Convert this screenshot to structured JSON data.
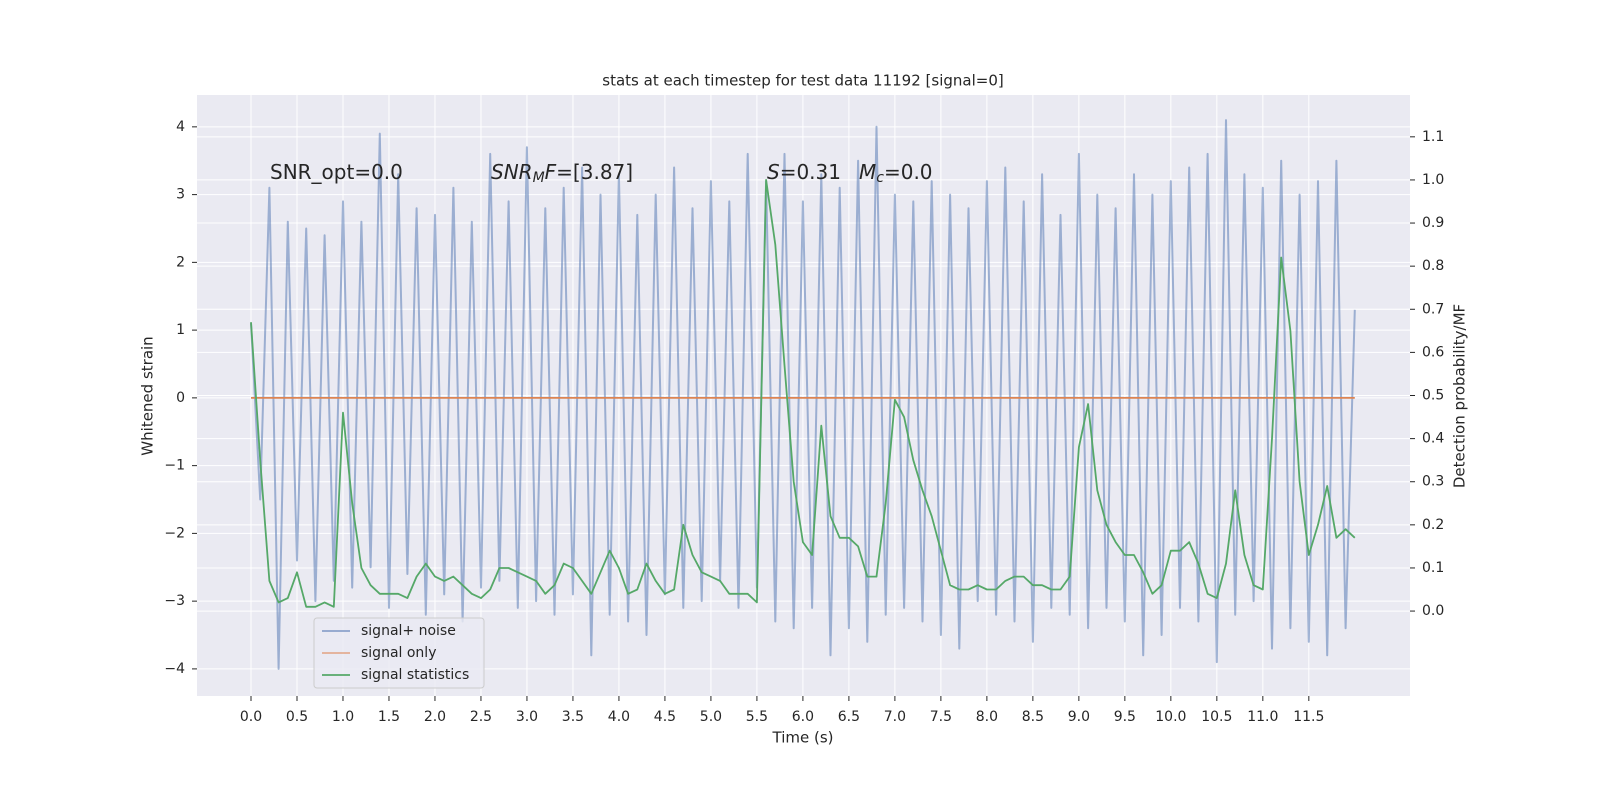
{
  "chart_data": {
    "type": "line",
    "title": "stats at each timestep for test data 11192 [signal=0]",
    "xlabel": "Time (s)",
    "ylabel": "Whitened strain",
    "y2label": "Detection probability/MF",
    "xlim": [
      -0.587,
      12.6
    ],
    "ylim": [
      -4.4,
      4.47
    ],
    "y2lim": [
      -0.197,
      1.197
    ],
    "xticks": [
      {
        "value": 0,
        "label": "0.0"
      },
      0.5,
      {
        "value": 1,
        "label": "1.0"
      },
      1.5,
      {
        "value": 2,
        "label": "2.0"
      },
      2.5,
      {
        "value": 3,
        "label": "3.0"
      },
      3.5,
      {
        "value": 4,
        "label": "4.0"
      },
      4.5,
      {
        "value": 5,
        "label": "5.0"
      },
      5.5,
      {
        "value": 6,
        "label": "6.0"
      },
      6.5,
      {
        "value": 7,
        "label": "7.0"
      },
      7.5,
      {
        "value": 8,
        "label": "8.0"
      },
      8.5,
      {
        "value": 9,
        "label": "9.0"
      },
      9.5,
      {
        "value": 10,
        "label": "10.0"
      },
      10.5,
      {
        "value": 11,
        "label": "11.0"
      },
      11.5
    ],
    "yticks": [
      {
        "value": -4,
        "label": "−4"
      },
      {
        "value": -3,
        "label": "−3"
      },
      {
        "value": -2,
        "label": "−2"
      },
      {
        "value": -1,
        "label": "−1"
      },
      0,
      1,
      2,
      3,
      4
    ],
    "y2ticks": [
      {
        "value": 0,
        "label": "0.0"
      },
      0.1,
      0.2,
      0.3,
      0.4,
      0.5,
      0.6,
      0.7,
      0.8,
      0.9,
      {
        "value": 1,
        "label": "1.0"
      },
      1.1
    ],
    "grid": true,
    "legend_loc": "lower left",
    "annotations": [
      [
        {
          "text": "SNR_opt=0.0",
          "italic": false,
          "sub": false
        }
      ],
      [
        {
          "text": "SNR",
          "italic": true,
          "sub": false
        },
        {
          "text": "M",
          "italic": true,
          "sub": true
        },
        {
          "text": "F",
          "italic": true,
          "sub": false
        },
        {
          "text": "=[3.87]",
          "italic": false,
          "sub": false
        }
      ],
      [
        {
          "text": "S",
          "italic": true,
          "sub": false
        },
        {
          "text": "=0.31",
          "italic": false,
          "sub": false
        }
      ],
      [
        {
          "text": "M",
          "italic": true,
          "sub": false
        },
        {
          "text": "c",
          "italic": true,
          "sub": true
        },
        {
          "text": "=0.0",
          "italic": false,
          "sub": false
        }
      ]
    ],
    "x": [
      0,
      0.1,
      0.2,
      0.3,
      0.4,
      0.5,
      0.6,
      0.7,
      0.8,
      0.9,
      1,
      1.1,
      1.2,
      1.3,
      1.4,
      1.5,
      1.6,
      1.7,
      1.8,
      1.9,
      2,
      2.1,
      2.2,
      2.3,
      2.4,
      2.5,
      2.6,
      2.7,
      2.8,
      2.9,
      3,
      3.1,
      3.2,
      3.3,
      3.4,
      3.5,
      3.6,
      3.7,
      3.8,
      3.9,
      4,
      4.1,
      4.2,
      4.3,
      4.4,
      4.5,
      4.6,
      4.7,
      4.8,
      4.9,
      5,
      5.1,
      5.2,
      5.3,
      5.4,
      5.5,
      5.6,
      5.7,
      5.8,
      5.9,
      6,
      6.1,
      6.2,
      6.3,
      6.4,
      6.5,
      6.6,
      6.7,
      6.8,
      6.9,
      7,
      7.1,
      7.2,
      7.3,
      7.4,
      7.5,
      7.6,
      7.7,
      7.8,
      7.9,
      8,
      8.1,
      8.2,
      8.3,
      8.4,
      8.5,
      8.6,
      8.7,
      8.8,
      8.9,
      9,
      9.1,
      9.2,
      9.3,
      9.4,
      9.5,
      9.6,
      9.7,
      9.8,
      9.9,
      10,
      10.1,
      10.2,
      10.3,
      10.4,
      10.5,
      10.6,
      10.7,
      10.8,
      10.9,
      11,
      11.1,
      11.2,
      11.3,
      11.4,
      11.5,
      11.6,
      11.7,
      11.8,
      11.9,
      12
    ],
    "series": [
      {
        "name": "signal+ noise",
        "color": "#4c72b0",
        "axis": "y",
        "values": [
          1.1,
          -1.5,
          3.1,
          -4.0,
          2.6,
          -2.4,
          2.5,
          -3.0,
          2.4,
          -2.7,
          2.9,
          -2.8,
          2.6,
          -2.5,
          3.9,
          -3.1,
          3.3,
          -2.6,
          2.8,
          -3.2,
          2.7,
          -2.9,
          3.1,
          -3.3,
          2.6,
          -2.8,
          3.6,
          -2.7,
          2.9,
          -3.1,
          3.7,
          -3.0,
          2.8,
          -3.2,
          3.1,
          -2.9,
          3.4,
          -3.8,
          3.0,
          -3.2,
          3.3,
          -3.3,
          2.7,
          -3.5,
          3.0,
          -2.9,
          3.4,
          -3.1,
          2.8,
          -3.0,
          3.2,
          -2.7,
          2.9,
          -3.1,
          3.6,
          -2.8,
          3.2,
          -3.3,
          3.6,
          -3.4,
          2.9,
          -3.1,
          3.3,
          -3.8,
          3.1,
          -3.4,
          3.5,
          -3.6,
          4.0,
          -3.2,
          3.0,
          -3.1,
          2.9,
          -3.3,
          3.2,
          -3.5,
          3.0,
          -3.7,
          2.8,
          -3.0,
          3.2,
          -3.2,
          3.4,
          -3.3,
          2.9,
          -3.6,
          3.3,
          -3.1,
          2.7,
          -3.2,
          3.6,
          -3.4,
          3.0,
          -3.1,
          2.8,
          -3.3,
          3.3,
          -3.8,
          3.0,
          -3.5,
          3.2,
          -3.1,
          3.4,
          -3.3,
          3.6,
          -3.9,
          4.1,
          -3.2,
          3.3,
          -3.0,
          3.1,
          -3.7,
          3.5,
          -3.4,
          3.0,
          -3.6,
          3.2,
          -3.8,
          3.5,
          -3.4,
          1.3
        ]
      },
      {
        "name": "signal only",
        "color": "#dd8452",
        "axis": "y",
        "x": [
          0,
          12
        ],
        "values": [
          0,
          0
        ]
      },
      {
        "name": "signal statistics",
        "color": "#55a868",
        "axis": "y2",
        "values": [
          0.67,
          0.35,
          0.07,
          0.02,
          0.03,
          0.09,
          0.01,
          0.01,
          0.02,
          0.01,
          0.46,
          0.25,
          0.1,
          0.06,
          0.04,
          0.04,
          0.04,
          0.03,
          0.08,
          0.11,
          0.08,
          0.07,
          0.08,
          0.06,
          0.04,
          0.03,
          0.05,
          0.1,
          0.1,
          0.09,
          0.08,
          0.07,
          0.04,
          0.06,
          0.11,
          0.1,
          0.07,
          0.04,
          0.09,
          0.14,
          0.1,
          0.04,
          0.05,
          0.11,
          0.07,
          0.04,
          0.05,
          0.2,
          0.13,
          0.09,
          0.08,
          0.07,
          0.04,
          0.04,
          0.04,
          0.02,
          1.0,
          0.85,
          0.57,
          0.3,
          0.16,
          0.13,
          0.43,
          0.22,
          0.17,
          0.17,
          0.15,
          0.08,
          0.08,
          0.25,
          0.49,
          0.45,
          0.35,
          0.28,
          0.22,
          0.14,
          0.06,
          0.05,
          0.05,
          0.06,
          0.05,
          0.05,
          0.07,
          0.08,
          0.08,
          0.06,
          0.06,
          0.05,
          0.05,
          0.08,
          0.38,
          0.48,
          0.28,
          0.2,
          0.16,
          0.13,
          0.13,
          0.09,
          0.04,
          0.06,
          0.14,
          0.14,
          0.16,
          0.11,
          0.04,
          0.03,
          0.11,
          0.28,
          0.13,
          0.06,
          0.05,
          0.4,
          0.82,
          0.65,
          0.3,
          0.13,
          0.2,
          0.29,
          0.17,
          0.19,
          0.17
        ]
      }
    ]
  }
}
